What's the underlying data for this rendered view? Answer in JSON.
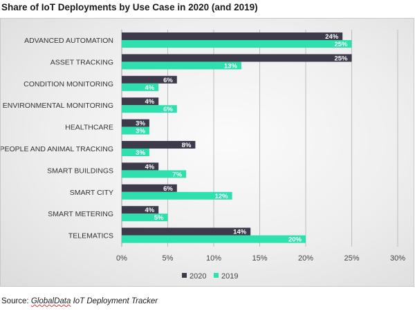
{
  "chart_data": {
    "type": "bar",
    "orientation": "horizontal",
    "title": "Share of IoT Deployments by Use Case in 2020 (and 2019)",
    "categories": [
      "ADVANCED AUTOMATION",
      "ASSET TRACKING",
      "CONDITION MONITORING",
      "ENVIRONMENTAL MONITORING",
      "HEALTHCARE",
      "PEOPLE AND ANIMAL TRACKING",
      "SMART BUILDINGS",
      "SMART CITY",
      "SMART METERING",
      "TELEMATICS"
    ],
    "series": [
      {
        "name": "2020",
        "color": "#3d3a4b",
        "values": [
          24,
          25,
          6,
          4,
          3,
          8,
          4,
          6,
          4,
          14
        ]
      },
      {
        "name": "2019",
        "color": "#2ee0ad",
        "values": [
          25,
          13,
          4,
          6,
          3,
          3,
          7,
          12,
          5,
          20
        ]
      }
    ],
    "value_suffix": "%",
    "xlim": [
      0,
      30
    ],
    "xticks": [
      0,
      5,
      10,
      15,
      20,
      25,
      30
    ],
    "xtick_labels": [
      "0%",
      "5%",
      "10%",
      "15%",
      "20%",
      "25%",
      "30%"
    ],
    "grid": true,
    "legend_position": "bottom-center"
  },
  "source": {
    "prefix": "Source: ",
    "name": "GlobalData",
    "rest": " IoT Deployment Tracker"
  }
}
